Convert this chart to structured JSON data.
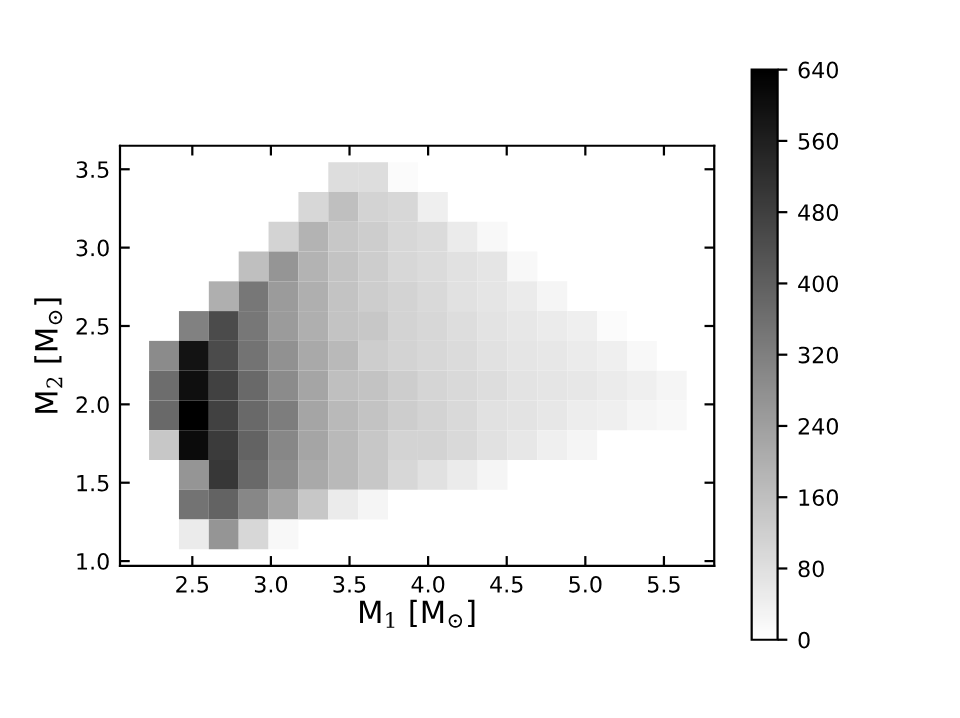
{
  "chart_data": {
    "type": "heatmap",
    "xlabel": "M$_{1}$ [M$_{⊙}$]",
    "ylabel": "M$_{2}$ [M$_{⊙}$]",
    "x": [
      2.32,
      2.51,
      2.7,
      2.89,
      3.08,
      3.27,
      3.46,
      3.65,
      3.84,
      4.03,
      4.22,
      4.41,
      4.6,
      4.79,
      4.98,
      5.17,
      5.36,
      5.55
    ],
    "y": [
      3.45,
      3.26,
      3.07,
      2.88,
      2.69,
      2.5,
      2.31,
      2.12,
      1.93,
      1.74,
      1.55,
      1.36,
      1.17
    ],
    "cells": [
      [
        null,
        null,
        null,
        null,
        null,
        null,
        85,
        85,
        12,
        null,
        null,
        null,
        null,
        null,
        null,
        null,
        null,
        null
      ],
      [
        null,
        null,
        null,
        null,
        null,
        100,
        160,
        110,
        100,
        40,
        null,
        null,
        null,
        null,
        null,
        null,
        null,
        null
      ],
      [
        null,
        null,
        null,
        null,
        110,
        190,
        140,
        125,
        100,
        90,
        50,
        18,
        null,
        null,
        null,
        null,
        null,
        null
      ],
      [
        null,
        null,
        null,
        160,
        265,
        190,
        150,
        125,
        100,
        90,
        75,
        65,
        18,
        null,
        null,
        null,
        null,
        null
      ],
      [
        null,
        null,
        200,
        340,
        250,
        200,
        150,
        125,
        110,
        95,
        75,
        65,
        50,
        25,
        null,
        null,
        null,
        null
      ],
      [
        null,
        315,
        450,
        340,
        250,
        200,
        150,
        140,
        110,
        100,
        85,
        70,
        60,
        50,
        40,
        12,
        null,
        null
      ],
      [
        290,
        590,
        450,
        350,
        275,
        215,
        175,
        125,
        110,
        100,
        90,
        75,
        65,
        60,
        50,
        40,
        18,
        null
      ],
      [
        365,
        600,
        475,
        375,
        290,
        225,
        160,
        150,
        125,
        105,
        95,
        85,
        70,
        65,
        60,
        50,
        40,
        25
      ],
      [
        375,
        640,
        475,
        375,
        325,
        225,
        175,
        150,
        125,
        110,
        95,
        75,
        70,
        60,
        45,
        40,
        25,
        18
      ],
      [
        140,
        610,
        490,
        390,
        300,
        225,
        175,
        140,
        110,
        110,
        95,
        75,
        60,
        40,
        25,
        null,
        null,
        null
      ],
      [
        null,
        265,
        500,
        375,
        290,
        215,
        175,
        140,
        100,
        75,
        50,
        25,
        null,
        null,
        null,
        null,
        null,
        null
      ],
      [
        null,
        350,
        390,
        300,
        225,
        140,
        50,
        25,
        null,
        null,
        null,
        null,
        null,
        null,
        null,
        null,
        null,
        null
      ],
      [
        null,
        50,
        265,
        100,
        18,
        null,
        null,
        null,
        null,
        null,
        null,
        null,
        null,
        null,
        null,
        null,
        null,
        null
      ]
    ],
    "xlim": [
      2.04,
      5.82
    ],
    "ylim": [
      0.97,
      3.65
    ],
    "xticks": [
      2.5,
      {
        "value": 3.0,
        "label": "3.0"
      },
      3.5,
      {
        "value": 4.0,
        "label": "4.0"
      },
      4.5,
      {
        "value": 5.0,
        "label": "5.0"
      },
      5.5
    ],
    "yticks": [
      {
        "value": 1.0,
        "label": "1.0"
      },
      1.5,
      {
        "value": 2.0,
        "label": "2.0"
      },
      2.5,
      {
        "value": 3.0,
        "label": "3.0"
      },
      3.5
    ],
    "clim": [
      0,
      640
    ],
    "cticks": [
      0,
      80,
      160,
      240,
      320,
      400,
      480,
      560,
      640
    ]
  }
}
